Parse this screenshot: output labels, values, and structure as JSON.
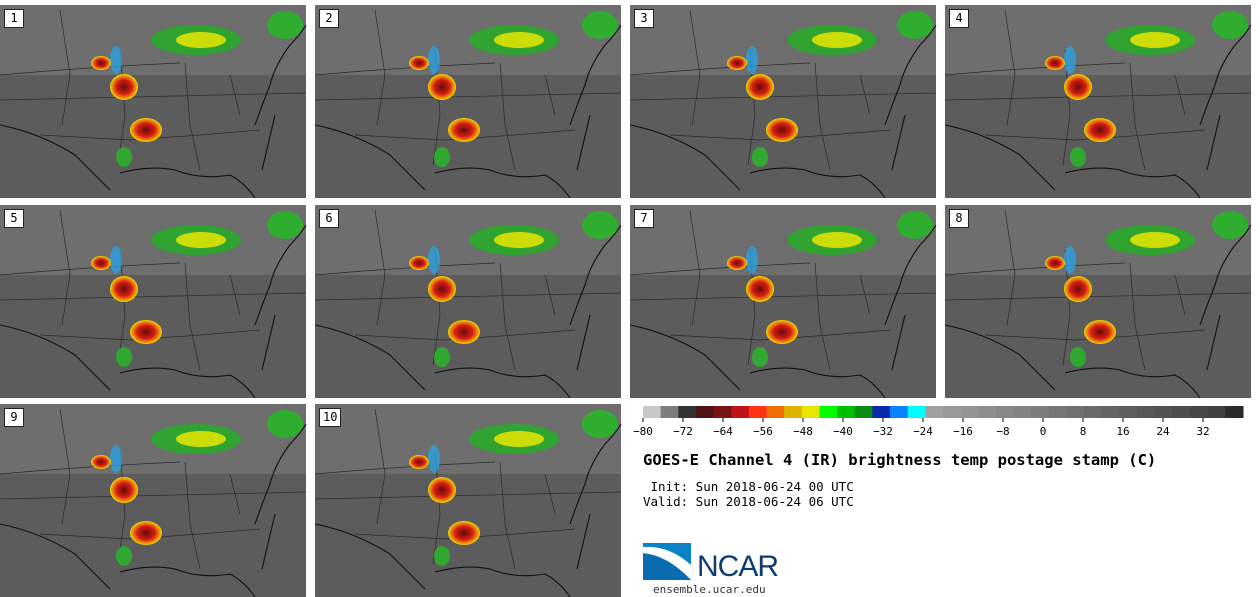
{
  "panels": [
    {
      "label": "1"
    },
    {
      "label": "2"
    },
    {
      "label": "3"
    },
    {
      "label": "4"
    },
    {
      "label": "5"
    },
    {
      "label": "6"
    },
    {
      "label": "7"
    },
    {
      "label": "8"
    },
    {
      "label": "9"
    },
    {
      "label": "10"
    }
  ],
  "colorbar": {
    "colors": [
      "#c8c8c8",
      "#7d7d7d",
      "#323232",
      "#501414",
      "#781414",
      "#be1414",
      "#ff3214",
      "#f06e0a",
      "#dcb400",
      "#e6e600",
      "#00ff00",
      "#00be00",
      "#0a8c14",
      "#0a28aa",
      "#0a82ff",
      "#00ffff",
      "#a0a0a0",
      "#9a9a9a",
      "#949494",
      "#8e8e8e",
      "#888888",
      "#828282",
      "#7c7c7c",
      "#767676",
      "#707070",
      "#6a6a6a",
      "#646464",
      "#5e5e5e",
      "#585858",
      "#525252",
      "#4c4c4c",
      "#464646",
      "#404040",
      "#2a2a2a"
    ],
    "ticks": [
      "−80",
      "−72",
      "−64",
      "−56",
      "−48",
      "−40",
      "−32",
      "−24",
      "−16",
      "−8",
      "0",
      "8",
      "16",
      "24",
      "32"
    ],
    "tick_values": [
      -80,
      -72,
      -64,
      -56,
      -48,
      -40,
      -32,
      -24,
      -16,
      -8,
      0,
      8,
      16,
      24,
      32
    ],
    "min": -80,
    "max": 40
  },
  "title": "GOES-E Channel 4 (IR) brightness temp postage stamp (C)",
  "init_text": " Init: Sun 2018-06-24 00 UTC",
  "valid_text": "Valid: Sun 2018-06-24 06 UTC",
  "logo_text": "NCAR",
  "url_text": "ensemble.ucar.edu"
}
